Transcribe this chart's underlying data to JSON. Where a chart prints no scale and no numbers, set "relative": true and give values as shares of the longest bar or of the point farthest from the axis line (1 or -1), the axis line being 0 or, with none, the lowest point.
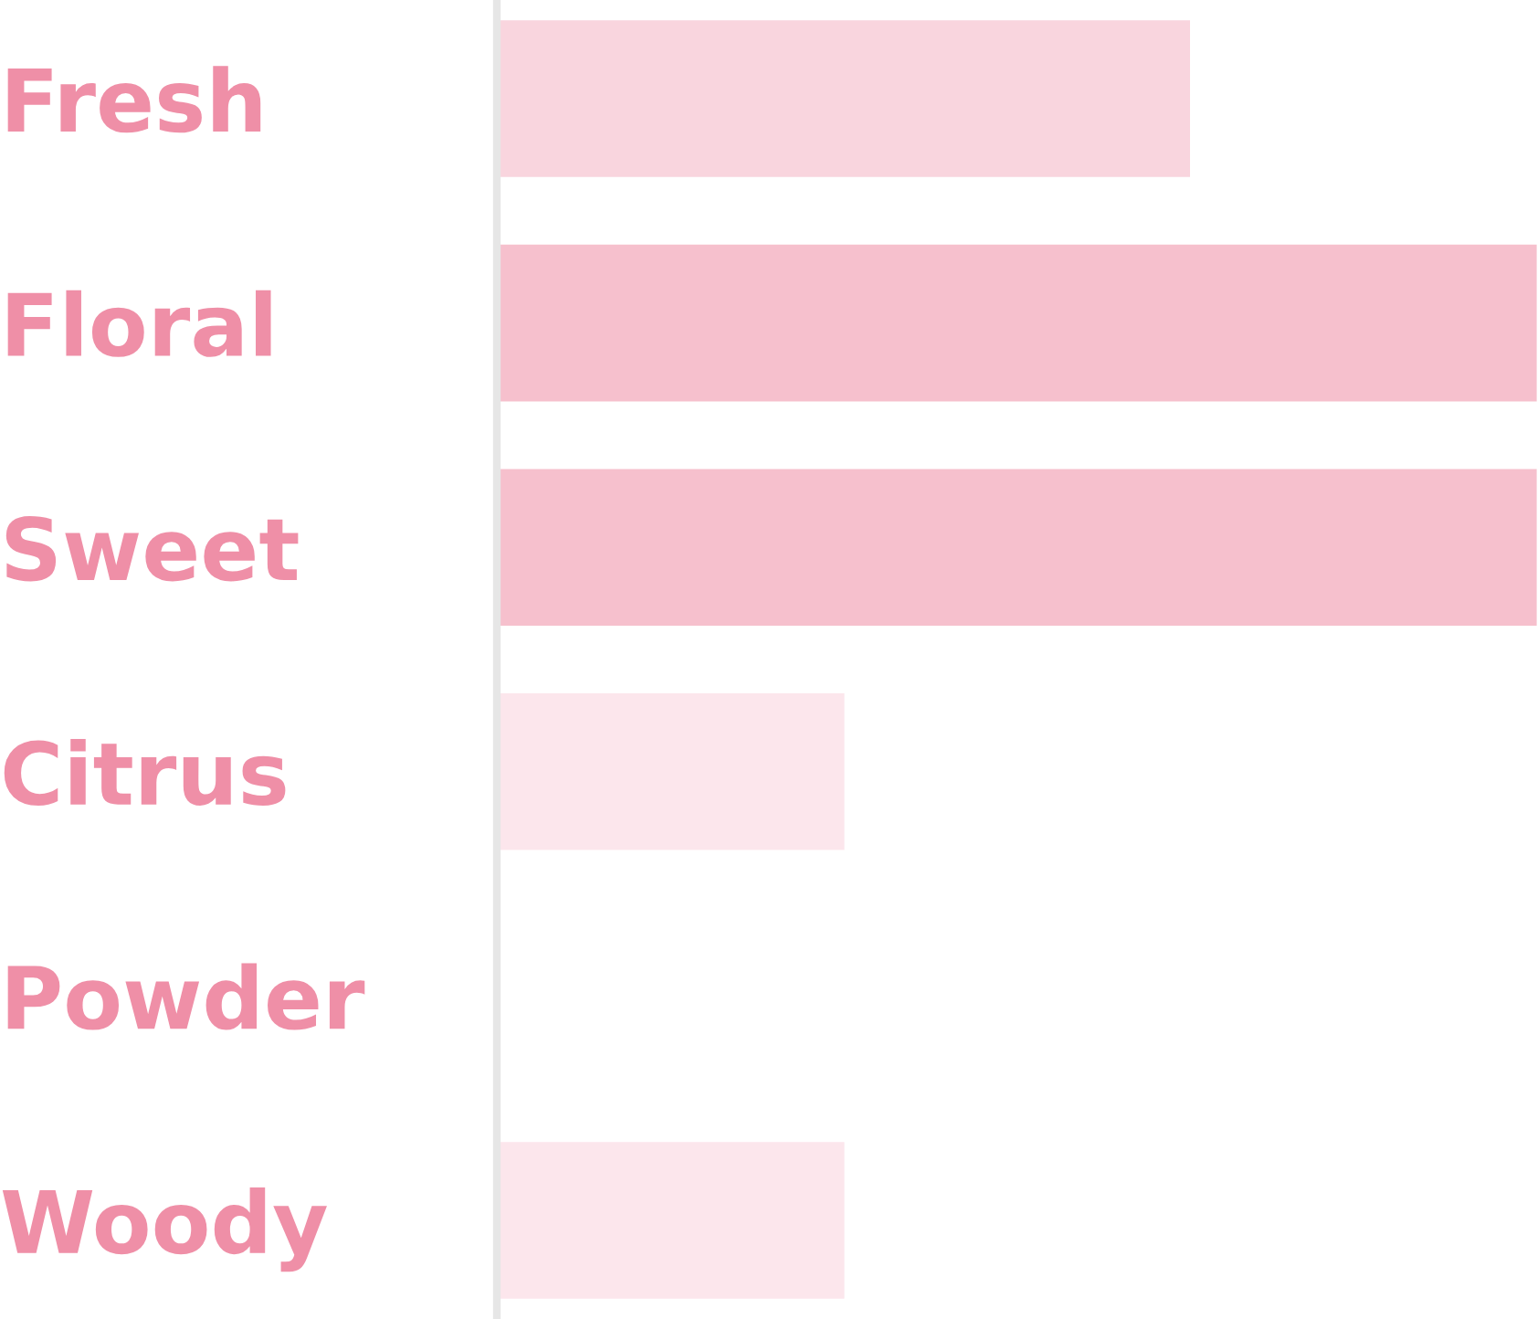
{
  "chart_data": {
    "type": "bar",
    "orientation": "horizontal",
    "relative": true,
    "categories": [
      "Fresh",
      "Floral",
      "Sweet",
      "Citrus",
      "Powder",
      "Woody"
    ],
    "values": [
      0.667,
      1,
      1,
      0.335,
      0,
      0.335
    ],
    "colors": [
      "#f9d5de",
      "#f6c0cd",
      "#f6c0cd",
      "#fce6ec",
      null,
      "#fce6ec"
    ],
    "grid": false,
    "legend": false
  }
}
